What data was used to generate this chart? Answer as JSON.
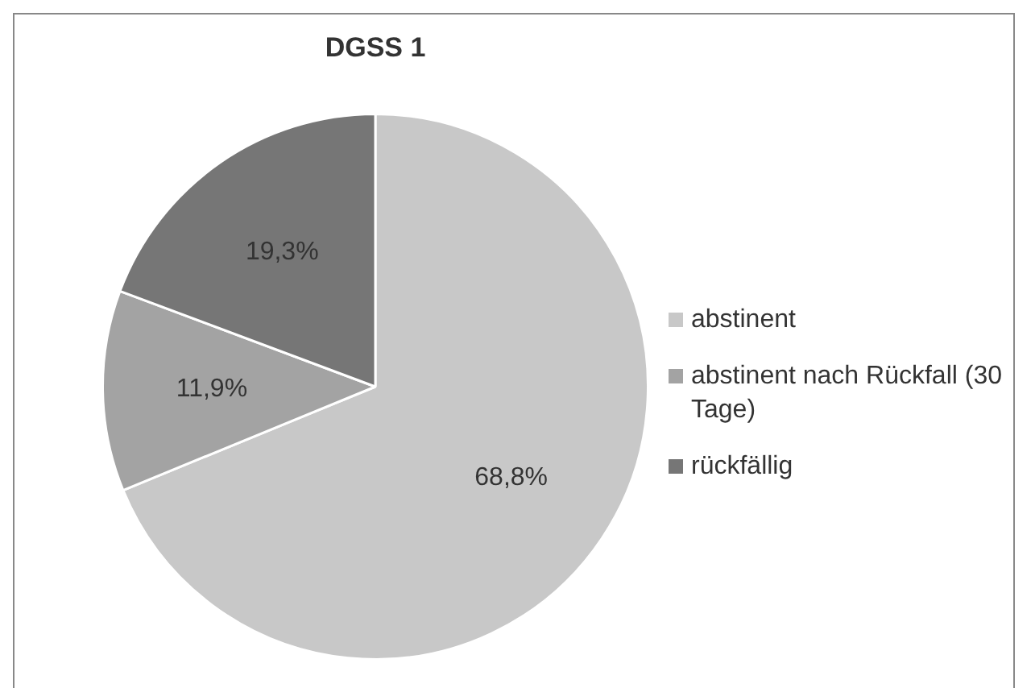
{
  "chart_data": {
    "type": "pie",
    "title": "DGSS 1",
    "categories": [
      "abstinent",
      "abstinent nach Rückfall (30 Tage)",
      "rückfällig"
    ],
    "values": [
      68.8,
      11.9,
      19.3
    ],
    "value_labels": [
      "68,8%",
      "11,9%",
      "19,3%"
    ],
    "colors": [
      "#c8c8c8",
      "#a3a3a3",
      "#767676"
    ],
    "legend": "right"
  }
}
